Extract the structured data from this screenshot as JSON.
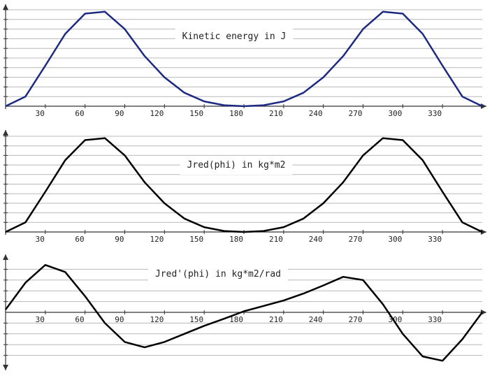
{
  "chart_data": [
    {
      "type": "line",
      "title": "Kinetic energy in J",
      "color": "#1c2a82",
      "x": [
        0,
        15,
        30,
        45,
        60,
        75,
        90,
        105,
        120,
        135,
        150,
        165,
        180,
        195,
        210,
        225,
        240,
        255,
        270,
        285,
        300,
        315,
        330,
        345,
        360
      ],
      "values": [
        0,
        0.1,
        0.42,
        0.75,
        0.96,
        0.98,
        0.8,
        0.52,
        0.3,
        0.14,
        0.05,
        0.01,
        0,
        0.01,
        0.05,
        0.14,
        0.3,
        0.52,
        0.8,
        0.98,
        0.96,
        0.75,
        0.42,
        0.1,
        0
      ],
      "xlim": [
        0,
        360
      ],
      "xticks": [
        30,
        60,
        90,
        120,
        150,
        180,
        210,
        240,
        270,
        300,
        330
      ],
      "ylim": [
        0,
        1
      ],
      "yticks": [
        0.1,
        0.2,
        0.3,
        0.4,
        0.5,
        0.6,
        0.7,
        0.8,
        0.9,
        1
      ],
      "grid": true
    },
    {
      "type": "line",
      "title": "Jred(phi) in kg*m2",
      "color": "#000000",
      "x": [
        0,
        15,
        30,
        45,
        60,
        75,
        90,
        105,
        120,
        135,
        150,
        165,
        180,
        195,
        210,
        225,
        240,
        255,
        270,
        285,
        300,
        315,
        330,
        345,
        360
      ],
      "values": [
        0,
        0.1,
        0.42,
        0.75,
        0.96,
        0.98,
        0.8,
        0.52,
        0.3,
        0.14,
        0.05,
        0.01,
        0,
        0.01,
        0.05,
        0.14,
        0.3,
        0.52,
        0.8,
        0.98,
        0.96,
        0.75,
        0.42,
        0.1,
        0
      ],
      "xlim": [
        0,
        360
      ],
      "xticks": [
        30,
        60,
        90,
        120,
        150,
        180,
        210,
        240,
        270,
        300,
        330
      ],
      "ylim": [
        0,
        1
      ],
      "yticks": [
        0.1,
        0.2,
        0.3,
        0.4,
        0.5,
        0.6,
        0.7,
        0.8,
        0.9,
        1
      ],
      "grid": true
    },
    {
      "type": "line",
      "title": "Jred'(phi) in kg*m2/rad",
      "color": "#000000",
      "x": [
        0,
        15,
        30,
        45,
        60,
        75,
        90,
        105,
        120,
        135,
        150,
        165,
        180,
        195,
        210,
        225,
        240,
        255,
        270,
        285,
        300,
        315,
        330,
        345,
        360
      ],
      "values": [
        0.05,
        0.55,
        0.88,
        0.75,
        0.3,
        -0.2,
        -0.55,
        -0.65,
        -0.55,
        -0.4,
        -0.25,
        -0.12,
        0.02,
        0.12,
        0.22,
        0.35,
        0.5,
        0.66,
        0.6,
        0.15,
        -0.4,
        -0.82,
        -0.9,
        -0.5,
        0
      ],
      "xlim": [
        0,
        360
      ],
      "xticks": [
        30,
        60,
        90,
        120,
        150,
        180,
        210,
        240,
        270,
        300,
        330
      ],
      "ylim": [
        -1,
        1
      ],
      "yticks": [
        -0.8,
        -0.6,
        -0.4,
        -0.2,
        0.2,
        0.4,
        0.6,
        0.8
      ],
      "grid": true
    }
  ]
}
